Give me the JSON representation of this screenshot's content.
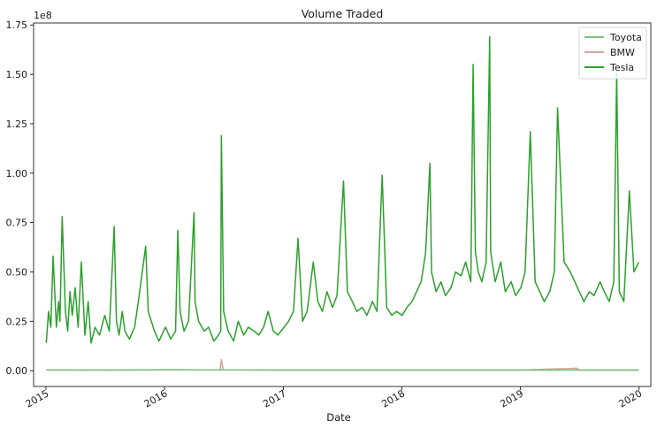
{
  "chart_data": {
    "type": "line",
    "title": "Volume Traded",
    "xlabel": "Date",
    "ylabel": "",
    "y_offset_label": "1e8",
    "x_ticks": [
      "2015",
      "2016",
      "2017",
      "2018",
      "2019",
      "2020"
    ],
    "xlim": [
      "2014-11-24",
      "2020-02-06"
    ],
    "ylim": [
      -0.08,
      1.76
    ],
    "y_ticks": [
      "0.00",
      "0.25",
      "0.50",
      "0.75",
      "1.00",
      "1.25",
      "1.50",
      "1.75"
    ],
    "y_tick_values": [
      0,
      0.25,
      0.5,
      0.75,
      1.0,
      1.25,
      1.5,
      1.75
    ],
    "legend_position": "top-right",
    "grid": false,
    "series": [
      {
        "name": "Toyota",
        "color": "#7bc47b",
        "x": [
          "2015-01-02",
          "2015-07-01",
          "2016-01-04",
          "2016-07-01",
          "2017-01-03",
          "2017-07-03",
          "2018-01-02",
          "2018-07-02",
          "2019-01-02",
          "2019-07-01",
          "2019-12-31"
        ],
        "values": [
          0.004,
          0.003,
          0.005,
          0.004,
          0.003,
          0.003,
          0.003,
          0.003,
          0.003,
          0.003,
          0.003
        ]
      },
      {
        "name": "BMW",
        "color": "#d4a5a0",
        "x": [
          "2015-01-02",
          "2015-07-01",
          "2016-01-04",
          "2016-06-20",
          "2016-06-24",
          "2016-06-30",
          "2017-01-03",
          "2017-07-03",
          "2018-01-02",
          "2018-07-02",
          "2019-01-02",
          "2019-06-24",
          "2019-07-01",
          "2019-12-31"
        ],
        "values": [
          0.003,
          0.003,
          0.004,
          0.004,
          0.055,
          0.004,
          0.003,
          0.003,
          0.003,
          0.003,
          0.003,
          0.012,
          0.003,
          0.003
        ]
      },
      {
        "name": "Tesla",
        "color": "#2ca02c",
        "x": [
          "2015-01-02",
          "2015-01-09",
          "2015-01-16",
          "2015-01-23",
          "2015-02-02",
          "2015-02-09",
          "2015-02-13",
          "2015-02-20",
          "2015-03-02",
          "2015-03-09",
          "2015-03-16",
          "2015-03-23",
          "2015-04-01",
          "2015-04-10",
          "2015-04-20",
          "2015-05-01",
          "2015-05-11",
          "2015-05-20",
          "2015-06-01",
          "2015-06-15",
          "2015-07-01",
          "2015-07-15",
          "2015-07-30",
          "2015-08-06",
          "2015-08-14",
          "2015-08-24",
          "2015-09-01",
          "2015-09-15",
          "2015-10-01",
          "2015-10-15",
          "2015-11-04",
          "2015-11-12",
          "2015-12-01",
          "2015-12-15",
          "2016-01-04",
          "2016-01-20",
          "2016-02-04",
          "2016-02-11",
          "2016-02-18",
          "2016-03-01",
          "2016-03-15",
          "2016-04-01",
          "2016-04-04",
          "2016-04-15",
          "2016-05-02",
          "2016-05-16",
          "2016-06-01",
          "2016-06-15",
          "2016-06-22",
          "2016-06-24",
          "2016-07-01",
          "2016-07-15",
          "2016-08-01",
          "2016-08-15",
          "2016-09-01",
          "2016-09-15",
          "2016-10-03",
          "2016-10-17",
          "2016-11-01",
          "2016-11-15",
          "2016-12-01",
          "2016-12-15",
          "2017-01-03",
          "2017-01-17",
          "2017-02-01",
          "2017-02-15",
          "2017-03-01",
          "2017-03-15",
          "2017-04-03",
          "2017-04-17",
          "2017-05-01",
          "2017-05-15",
          "2017-06-01",
          "2017-06-15",
          "2017-07-05",
          "2017-07-17",
          "2017-08-01",
          "2017-08-15",
          "2017-09-01",
          "2017-09-15",
          "2017-10-02",
          "2017-10-16",
          "2017-11-01",
          "2017-11-15",
          "2017-12-01",
          "2017-12-15",
          "2018-01-02",
          "2018-01-16",
          "2018-02-01",
          "2018-02-15",
          "2018-03-01",
          "2018-03-15",
          "2018-03-28",
          "2018-04-02",
          "2018-04-16",
          "2018-05-01",
          "2018-05-15",
          "2018-06-01",
          "2018-06-15",
          "2018-07-02",
          "2018-07-16",
          "2018-08-01",
          "2018-08-08",
          "2018-08-15",
          "2018-08-24",
          "2018-09-04",
          "2018-09-17",
          "2018-09-28",
          "2018-10-01",
          "2018-10-15",
          "2018-11-01",
          "2018-11-15",
          "2018-12-03",
          "2018-12-17",
          "2019-01-02",
          "2019-01-15",
          "2019-01-31",
          "2019-02-15",
          "2019-03-01",
          "2019-03-15",
          "2019-04-01",
          "2019-04-15",
          "2019-04-25",
          "2019-05-15",
          "2019-06-03",
          "2019-06-17",
          "2019-07-01",
          "2019-07-15",
          "2019-08-01",
          "2019-08-15",
          "2019-09-03",
          "2019-09-16",
          "2019-10-01",
          "2019-10-15",
          "2019-10-24",
          "2019-11-01",
          "2019-11-15",
          "2019-12-02",
          "2019-12-16",
          "2019-12-31"
        ],
        "values": [
          0.14,
          0.3,
          0.22,
          0.58,
          0.22,
          0.35,
          0.25,
          0.78,
          0.3,
          0.2,
          0.4,
          0.28,
          0.42,
          0.22,
          0.55,
          0.18,
          0.35,
          0.14,
          0.22,
          0.18,
          0.28,
          0.2,
          0.73,
          0.25,
          0.18,
          0.3,
          0.2,
          0.16,
          0.22,
          0.38,
          0.63,
          0.3,
          0.2,
          0.15,
          0.22,
          0.16,
          0.2,
          0.71,
          0.3,
          0.2,
          0.25,
          0.8,
          0.35,
          0.25,
          0.2,
          0.22,
          0.15,
          0.18,
          0.2,
          1.19,
          0.3,
          0.2,
          0.15,
          0.25,
          0.18,
          0.22,
          0.2,
          0.18,
          0.22,
          0.3,
          0.2,
          0.18,
          0.22,
          0.25,
          0.3,
          0.67,
          0.25,
          0.3,
          0.55,
          0.35,
          0.3,
          0.4,
          0.32,
          0.38,
          0.96,
          0.4,
          0.35,
          0.3,
          0.32,
          0.28,
          0.35,
          0.3,
          0.99,
          0.32,
          0.28,
          0.3,
          0.28,
          0.32,
          0.35,
          0.4,
          0.45,
          0.6,
          1.05,
          0.5,
          0.4,
          0.45,
          0.38,
          0.42,
          0.5,
          0.48,
          0.55,
          0.45,
          1.55,
          0.6,
          0.5,
          0.45,
          0.55,
          1.69,
          0.6,
          0.45,
          0.55,
          0.4,
          0.45,
          0.38,
          0.42,
          0.5,
          1.21,
          0.45,
          0.4,
          0.35,
          0.4,
          0.5,
          1.33,
          0.55,
          0.5,
          0.45,
          0.4,
          0.35,
          0.4,
          0.38,
          0.45,
          0.4,
          0.35,
          0.45,
          1.51,
          0.4,
          0.35,
          0.91,
          0.5,
          0.55
        ]
      }
    ]
  }
}
